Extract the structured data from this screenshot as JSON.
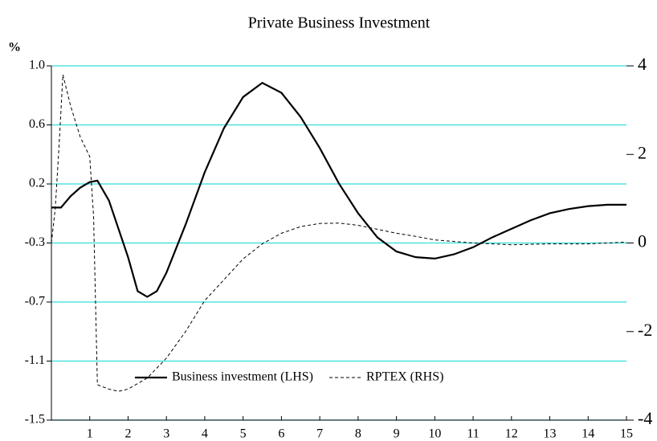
{
  "chart_data": {
    "type": "line",
    "title": "Private Business Investment",
    "y_label": "%",
    "xlim": [
      0,
      15
    ],
    "xticks": [
      1,
      2,
      3,
      4,
      5,
      6,
      7,
      8,
      9,
      10,
      11,
      12,
      13,
      14,
      15
    ],
    "ylim": [
      -1.5,
      1.0
    ],
    "yticks": [
      {
        "value": -1.5,
        "label": "-1.5"
      },
      {
        "value": -1.0833,
        "label": "-1.1"
      },
      {
        "value": -0.6667,
        "label": "-0.7"
      },
      {
        "value": -0.25,
        "label": "-0.3"
      },
      {
        "value": 0.1667,
        "label": "0.2"
      },
      {
        "value": 0.5833,
        "label": "0.6"
      },
      {
        "value": 1.0,
        "label": "1.0"
      }
    ],
    "y2lim": [
      -4,
      4
    ],
    "y2ticks": [
      -4,
      -2,
      0,
      2,
      4
    ],
    "grid": true,
    "grid_color": "#33dddd",
    "legend": "bottom",
    "series": [
      {
        "name": "Business investment (LHS)",
        "color": "#000000",
        "style": "solid",
        "axis": "y",
        "x": [
          0,
          0.25,
          0.5,
          0.75,
          1.0,
          1.2,
          1.5,
          2.0,
          2.25,
          2.5,
          2.75,
          3.0,
          3.5,
          4.0,
          4.5,
          5.0,
          5.5,
          6.0,
          6.5,
          7.0,
          7.5,
          8.0,
          8.5,
          9.0,
          9.5,
          10,
          10.5,
          11,
          11.5,
          12,
          12.5,
          13,
          13.5,
          14,
          14.5,
          15
        ],
        "values": [
          0.0,
          0.0,
          0.08,
          0.14,
          0.18,
          0.19,
          0.05,
          -0.35,
          -0.59,
          -0.63,
          -0.59,
          -0.46,
          -0.12,
          0.25,
          0.56,
          0.78,
          0.88,
          0.81,
          0.64,
          0.42,
          0.17,
          -0.04,
          -0.21,
          -0.31,
          -0.35,
          -0.36,
          -0.33,
          -0.28,
          -0.21,
          -0.15,
          -0.09,
          -0.04,
          -0.01,
          0.01,
          0.02,
          0.02
        ]
      },
      {
        "name": "RPTEX (RHS)",
        "color": "#000000",
        "style": "dashed",
        "axis": "y2",
        "x": [
          0,
          0.1,
          0.2,
          0.3,
          0.5,
          0.75,
          1.0,
          1.1,
          1.2,
          1.5,
          1.75,
          2.0,
          2.5,
          3.0,
          3.5,
          4.0,
          4.5,
          5.0,
          5.5,
          6.0,
          6.5,
          7.0,
          7.5,
          8.0,
          8.5,
          9.0,
          9.5,
          10,
          11,
          12,
          13,
          14,
          15
        ],
        "values": [
          0,
          0.77,
          2.2,
          3.8,
          3.1,
          2.4,
          1.95,
          0.6,
          -3.2,
          -3.3,
          -3.35,
          -3.3,
          -3.05,
          -2.6,
          -2.0,
          -1.3,
          -0.83,
          -0.36,
          -0.02,
          0.22,
          0.37,
          0.44,
          0.45,
          0.4,
          0.31,
          0.22,
          0.15,
          0.07,
          0,
          -0.04,
          -0.02,
          -0.02,
          0.02
        ]
      }
    ]
  }
}
